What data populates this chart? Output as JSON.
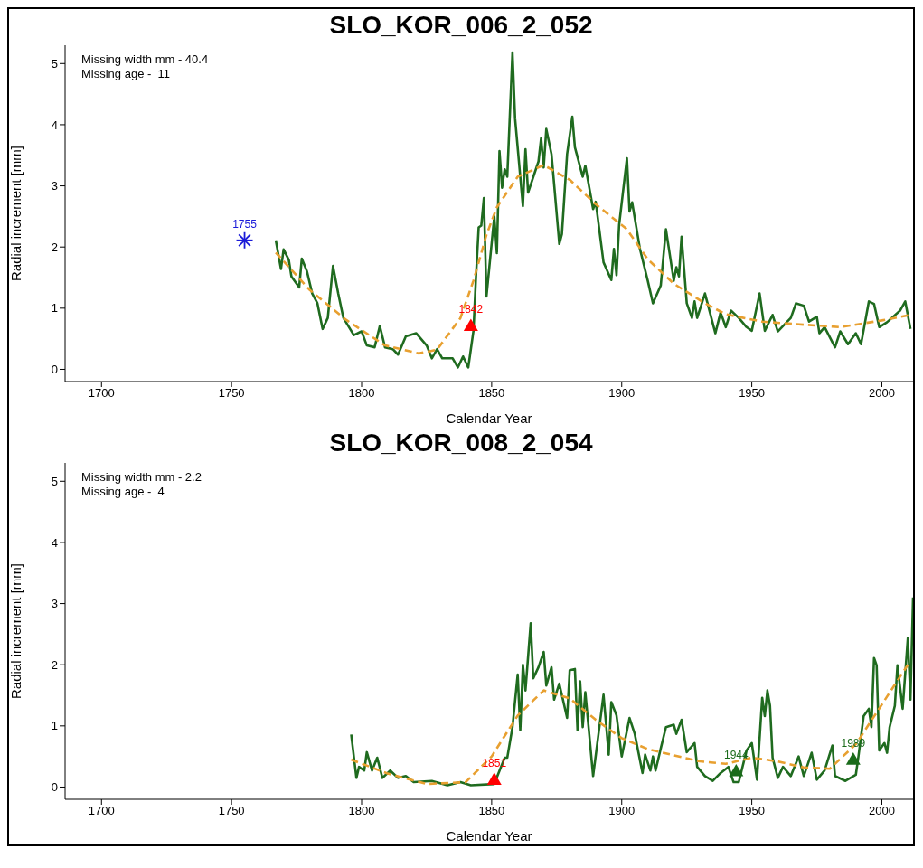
{
  "chart_data": [
    {
      "type": "line",
      "title": "SLO_KOR_006_2_052",
      "xlabel": "Calendar Year",
      "ylabel": "Radial increment [mm]",
      "xlim": [
        1686,
        2012
      ],
      "xticks": [
        1700,
        1750,
        1800,
        1850,
        1900,
        1950,
        2000
      ],
      "ylim": [
        -0.2,
        5.3
      ],
      "yticks": [
        0,
        1,
        2,
        3,
        4,
        5
      ],
      "grid": false,
      "legend": false,
      "annotations": [
        "Missing width mm - 40.4",
        "Missing age -  11",
        {
          "text": "1755",
          "x": 1755,
          "y": 2.11
        },
        {
          "text": "1842",
          "x": 1842,
          "y": 0.71
        }
      ],
      "series": [
        {
          "color": "#1f6b1f",
          "line_style": "solid",
          "x": [
            1767,
            1769,
            1770,
            1772,
            1773,
            1776,
            1777,
            1779,
            1781,
            1783,
            1785,
            1787,
            1789,
            1791,
            1793,
            1796,
            1797,
            1800,
            1802,
            1805,
            1807,
            1809,
            1812,
            1814,
            1817,
            1821,
            1825,
            1827,
            1829,
            1831,
            1835,
            1837,
            1839,
            1841,
            1843,
            1844,
            1845,
            1846,
            1847,
            1848,
            1851,
            1852,
            1853,
            1854,
            1855,
            1856,
            1858,
            1859,
            1862,
            1863,
            1864,
            1868,
            1869,
            1870,
            1871,
            1873,
            1876,
            1877,
            1879,
            1881,
            1882,
            1885,
            1886,
            1889,
            1890,
            1893,
            1896,
            1897,
            1898,
            1899,
            1902,
            1903,
            1904,
            1907,
            1910,
            1912,
            1915,
            1917,
            1920,
            1921,
            1922,
            1923,
            1925,
            1927,
            1928,
            1929,
            1932,
            1936,
            1938,
            1940,
            1942,
            1945,
            1948,
            1950,
            1953,
            1955,
            1958,
            1960,
            1965,
            1967,
            1970,
            1972,
            1975,
            1976,
            1978,
            1982,
            1984,
            1987,
            1990,
            1992,
            1995,
            1997,
            1999,
            2002,
            2007,
            2009,
            2011
          ],
          "values": [
            2.11,
            1.64,
            1.96,
            1.79,
            1.52,
            1.34,
            1.81,
            1.6,
            1.24,
            1.08,
            0.66,
            0.84,
            1.69,
            1.24,
            0.84,
            0.63,
            0.56,
            0.62,
            0.39,
            0.36,
            0.71,
            0.36,
            0.33,
            0.24,
            0.54,
            0.59,
            0.39,
            0.18,
            0.33,
            0.18,
            0.18,
            0.03,
            0.21,
            0.03,
            0.63,
            1.54,
            2.32,
            2.35,
            2.8,
            1.19,
            2.5,
            1.9,
            3.57,
            2.97,
            3.27,
            3.15,
            5.18,
            4.1,
            2.67,
            3.6,
            2.89,
            3.4,
            3.78,
            3.3,
            3.93,
            3.52,
            2.05,
            2.21,
            3.52,
            4.13,
            3.63,
            3.15,
            3.33,
            2.62,
            2.74,
            1.75,
            1.46,
            1.97,
            1.54,
            2.36,
            3.45,
            2.58,
            2.73,
            1.97,
            1.45,
            1.08,
            1.37,
            2.29,
            1.45,
            1.67,
            1.52,
            2.17,
            1.08,
            0.84,
            1.11,
            0.84,
            1.24,
            0.59,
            0.93,
            0.69,
            0.96,
            0.84,
            0.69,
            0.63,
            1.24,
            0.63,
            0.89,
            0.62,
            0.84,
            1.08,
            1.04,
            0.78,
            0.86,
            0.59,
            0.69,
            0.36,
            0.62,
            0.41,
            0.59,
            0.41,
            1.11,
            1.07,
            0.69,
            0.77,
            0.96,
            1.11,
            0.66
          ]
        },
        {
          "color": "#e8a030",
          "line_style": "dashed",
          "x": [
            1767,
            1780,
            1794,
            1809,
            1822,
            1829,
            1838,
            1843,
            1848,
            1852,
            1860,
            1870,
            1880,
            1890,
            1902,
            1910,
            1920,
            1932,
            1940,
            1954,
            1970,
            1984,
            2000,
            2011
          ],
          "values": [
            1.91,
            1.3,
            0.81,
            0.39,
            0.26,
            0.32,
            0.84,
            1.45,
            2.2,
            2.65,
            3.15,
            3.34,
            3.1,
            2.7,
            2.29,
            1.8,
            1.4,
            1.08,
            0.9,
            0.78,
            0.73,
            0.69,
            0.8,
            0.89
          ]
        },
        {
          "type": "scatter",
          "marker": "cross",
          "color": "#1a1ad8",
          "x": [
            1755
          ],
          "values": [
            2.11
          ]
        },
        {
          "type": "scatter",
          "marker": "triangle",
          "color": "#ff0000",
          "x": [
            1842
          ],
          "values": [
            0.71
          ]
        }
      ]
    },
    {
      "type": "line",
      "title": "SLO_KOR_008_2_054",
      "xlabel": "Calendar Year",
      "ylabel": "Radial increment [mm]",
      "xlim": [
        1686,
        2012
      ],
      "xticks": [
        1700,
        1750,
        1800,
        1850,
        1900,
        1950,
        2000
      ],
      "ylim": [
        -0.2,
        5.3
      ],
      "yticks": [
        0,
        1,
        2,
        3,
        4,
        5
      ],
      "grid": false,
      "legend": false,
      "annotations": [
        "Missing width mm - 2.2",
        "Missing age -  4",
        {
          "text": "1851",
          "x": 1851,
          "y": 0.12
        },
        {
          "text": "1944",
          "x": 1944,
          "y": 0.26
        },
        {
          "text": "1989",
          "x": 1989,
          "y": 0.45
        }
      ],
      "series": [
        {
          "color": "#1f6b1f",
          "line_style": "solid",
          "x": [
            1796,
            1798,
            1799,
            1801,
            1802,
            1804,
            1806,
            1808,
            1811,
            1814,
            1817,
            1820,
            1827,
            1833,
            1838,
            1842,
            1851,
            1855,
            1856,
            1858,
            1860,
            1861,
            1862,
            1863,
            1865,
            1866,
            1868,
            1870,
            1871,
            1873,
            1874,
            1876,
            1879,
            1880,
            1882,
            1883,
            1884,
            1885,
            1886,
            1889,
            1893,
            1895,
            1896,
            1898,
            1900,
            1903,
            1905,
            1908,
            1909,
            1911,
            1912,
            1913,
            1915,
            1917,
            1920,
            1921,
            1923,
            1925,
            1928,
            1929,
            1932,
            1935,
            1938,
            1941,
            1943,
            1945,
            1948,
            1950,
            1952,
            1954,
            1955,
            1956,
            1957,
            1958,
            1960,
            1962,
            1965,
            1968,
            1970,
            1973,
            1975,
            1978,
            1981,
            1982,
            1986,
            1990,
            1991,
            1993,
            1995,
            1996,
            1997,
            1998,
            1999,
            2001,
            2002,
            2003,
            2005,
            2006,
            2008,
            2010,
            2011,
            2012
          ],
          "values": [
            0.86,
            0.15,
            0.33,
            0.27,
            0.57,
            0.27,
            0.48,
            0.15,
            0.27,
            0.15,
            0.18,
            0.08,
            0.1,
            0.03,
            0.08,
            0.03,
            0.05,
            0.48,
            0.48,
            0.98,
            1.84,
            0.93,
            2.0,
            1.58,
            2.68,
            1.78,
            1.96,
            2.21,
            1.66,
            1.96,
            1.43,
            1.69,
            1.13,
            1.91,
            1.93,
            0.93,
            1.73,
            0.98,
            1.55,
            0.18,
            1.51,
            0.53,
            1.39,
            1.17,
            0.5,
            1.13,
            0.87,
            0.23,
            0.53,
            0.27,
            0.5,
            0.27,
            0.63,
            0.98,
            1.02,
            0.87,
            1.1,
            0.57,
            0.72,
            0.33,
            0.18,
            0.1,
            0.23,
            0.33,
            0.08,
            0.08,
            0.6,
            0.72,
            0.12,
            1.46,
            1.16,
            1.58,
            1.33,
            0.48,
            0.15,
            0.33,
            0.18,
            0.5,
            0.18,
            0.56,
            0.12,
            0.27,
            0.68,
            0.18,
            0.1,
            0.2,
            0.5,
            1.16,
            1.28,
            0.98,
            2.11,
            1.99,
            0.6,
            0.72,
            0.56,
            0.98,
            1.33,
            1.99,
            1.28,
            2.44,
            1.43,
            3.1
          ]
        },
        {
          "color": "#e8a030",
          "line_style": "dashed",
          "x": [
            1796,
            1810,
            1825,
            1840,
            1850,
            1860,
            1870,
            1880,
            1890,
            1900,
            1910,
            1920,
            1930,
            1940,
            1950,
            1960,
            1970,
            1980,
            1990,
            2000,
            2010
          ],
          "values": [
            0.45,
            0.22,
            0.05,
            0.08,
            0.5,
            1.17,
            1.58,
            1.45,
            1.1,
            0.8,
            0.62,
            0.52,
            0.42,
            0.38,
            0.48,
            0.42,
            0.32,
            0.3,
            0.7,
            1.35,
            2.0
          ]
        },
        {
          "type": "scatter",
          "marker": "triangle",
          "color": "#ff0000",
          "colors": [
            "#ff0000",
            "#1a6b1a",
            "#1a6b1a"
          ],
          "x": [
            1851,
            1944,
            1989
          ],
          "values": [
            0.12,
            0.26,
            0.45
          ]
        }
      ]
    }
  ]
}
